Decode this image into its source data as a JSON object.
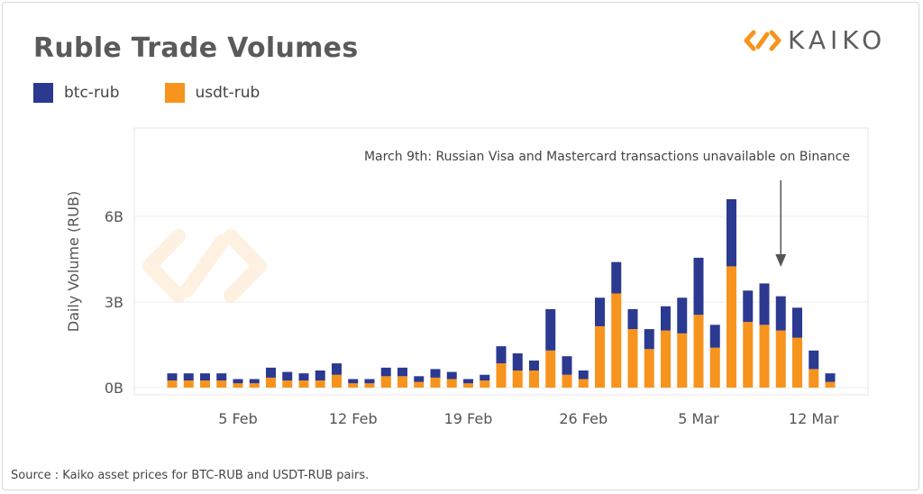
{
  "header": {
    "title": "Ruble Trade Volumes",
    "logo_text": "KAIKO"
  },
  "source_note": "Source : Kaiko asset prices  for BTC-RUB and USDT-RUB pairs.",
  "colors": {
    "btc": "#2b3990",
    "usdt": "#f7941d",
    "annotation_arrow": "#555555"
  },
  "chart_data": {
    "type": "bar",
    "stacked": true,
    "ylabel": "Daily Volume (RUB)",
    "ylim": [
      0,
      7.0
    ],
    "yticks": [
      {
        "value": 0,
        "label": "0B"
      },
      {
        "value": 3,
        "label": "3B"
      },
      {
        "value": 6,
        "label": "6B"
      }
    ],
    "xticks": [
      {
        "index": 4,
        "label": "5 Feb"
      },
      {
        "index": 11,
        "label": "12 Feb"
      },
      {
        "index": 18,
        "label": "19 Feb"
      },
      {
        "index": 25,
        "label": "26 Feb"
      },
      {
        "index": 32,
        "label": "5 Mar"
      },
      {
        "index": 39,
        "label": "12 Mar"
      }
    ],
    "categories": [
      "1 Feb",
      "2 Feb",
      "3 Feb",
      "4 Feb",
      "5 Feb",
      "6 Feb",
      "7 Feb",
      "8 Feb",
      "9 Feb",
      "10 Feb",
      "11 Feb",
      "12 Feb",
      "13 Feb",
      "14 Feb",
      "15 Feb",
      "16 Feb",
      "17 Feb",
      "18 Feb",
      "19 Feb",
      "20 Feb",
      "21 Feb",
      "22 Feb",
      "23 Feb",
      "24 Feb",
      "25 Feb",
      "26 Feb",
      "27 Feb",
      "28 Feb",
      "1 Mar",
      "2 Mar",
      "3 Mar",
      "4 Mar",
      "5 Mar",
      "6 Mar",
      "7 Mar",
      "8 Mar",
      "9 Mar",
      "10 Mar",
      "11 Mar",
      "12 Mar",
      "13 Mar"
    ],
    "series": [
      {
        "name": "usdt-rub",
        "values": [
          0.25,
          0.25,
          0.25,
          0.25,
          0.15,
          0.15,
          0.35,
          0.25,
          0.25,
          0.25,
          0.45,
          0.15,
          0.15,
          0.4,
          0.4,
          0.2,
          0.35,
          0.3,
          0.15,
          0.25,
          0.85,
          0.6,
          0.6,
          1.3,
          0.45,
          0.3,
          2.15,
          3.3,
          2.05,
          1.35,
          2.0,
          1.9,
          2.55,
          1.4,
          4.25,
          2.3,
          2.2,
          2.0,
          1.75,
          0.65,
          0.2
        ]
      },
      {
        "name": "btc-rub",
        "values": [
          0.25,
          0.25,
          0.25,
          0.25,
          0.15,
          0.15,
          0.35,
          0.3,
          0.25,
          0.35,
          0.4,
          0.15,
          0.15,
          0.3,
          0.3,
          0.2,
          0.3,
          0.25,
          0.15,
          0.2,
          0.6,
          0.6,
          0.35,
          1.45,
          0.65,
          0.3,
          1.0,
          1.1,
          0.7,
          0.7,
          0.85,
          1.25,
          2.0,
          0.8,
          2.35,
          1.1,
          1.45,
          1.2,
          1.05,
          0.65,
          0.3
        ]
      }
    ],
    "annotation": {
      "text": "March 9th: Russian Visa and Mastercard transactions unavailable on Binance",
      "category_index": 37
    }
  }
}
